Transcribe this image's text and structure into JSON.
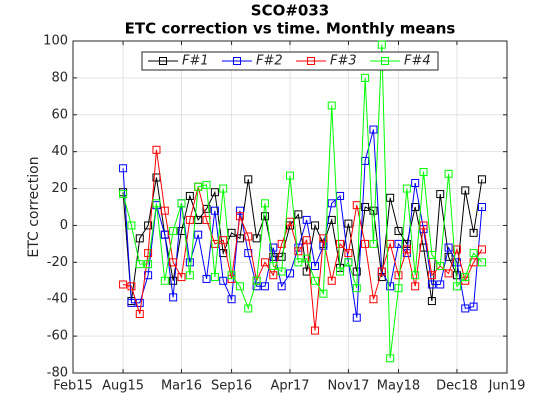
{
  "chart_data": {
    "type": "line",
    "title": "SCO#033",
    "subtitle": "ETC correction vs time. Monthly means",
    "ylabel": "ETC correction",
    "x": [
      6,
      7,
      8,
      9,
      10,
      11,
      12,
      13,
      14,
      15,
      16,
      17,
      18,
      19,
      20,
      21,
      22,
      23,
      24,
      25,
      26,
      27,
      28,
      29,
      30,
      31,
      32,
      33,
      34,
      35,
      36,
      37,
      38,
      39,
      40,
      41,
      42,
      43,
      44,
      45,
      46,
      47,
      48,
      49
    ],
    "xlim": [
      0,
      52
    ],
    "xticks": [
      {
        "value": 0,
        "label": "Feb15"
      },
      {
        "value": 6,
        "label": "Aug15"
      },
      {
        "value": 13,
        "label": "Mar16"
      },
      {
        "value": 19,
        "label": "Sep16"
      },
      {
        "value": 26,
        "label": "Apr17"
      },
      {
        "value": 33,
        "label": "Nov17"
      },
      {
        "value": 39,
        "label": "May18"
      },
      {
        "value": 46,
        "label": "Dec18"
      },
      {
        "value": 52,
        "label": "Jun19"
      }
    ],
    "ylim": [
      -80,
      100
    ],
    "yticks": [
      -80,
      -60,
      -40,
      -20,
      0,
      20,
      40,
      60,
      80,
      100
    ],
    "grid": true,
    "legend": "top",
    "series": [
      {
        "name": "F#1",
        "color": "#000000",
        "values": [
          18,
          -41,
          -7,
          0,
          26,
          -5,
          -30,
          -3,
          16,
          3,
          9,
          18,
          -15,
          -4,
          -7,
          25,
          -7,
          5,
          -17,
          -17,
          0,
          6,
          -25,
          0,
          -10,
          3,
          -23,
          1,
          -25,
          10,
          8,
          -28,
          15,
          -3,
          -10,
          10,
          -12,
          -41,
          17,
          -17,
          -27,
          19,
          -4,
          25
        ]
      },
      {
        "name": "F#2",
        "color": "#0000ff",
        "values": [
          31,
          -42,
          -42,
          -27,
          11,
          -5,
          -39,
          12,
          -20,
          -5,
          -29,
          8,
          -30,
          -40,
          8,
          -15,
          -33,
          -33,
          -12,
          -33,
          -26,
          -12,
          3,
          -22,
          -11,
          12,
          16,
          -20,
          -50,
          35,
          52,
          -25,
          -33,
          -10,
          -15,
          23,
          -2,
          -32,
          -32,
          -12,
          -20,
          -45,
          -44,
          10
        ]
      },
      {
        "name": "F#3",
        "color": "#ff0000",
        "values": [
          -32,
          -33,
          -48,
          -15,
          41,
          8,
          -20,
          -28,
          3,
          21,
          3,
          -10,
          -8,
          -29,
          5,
          -6,
          -30,
          -20,
          -27,
          -10,
          2,
          -14,
          -8,
          -57,
          -7,
          -30,
          -10,
          -15,
          11,
          -10,
          -40,
          -25,
          -10,
          -27,
          -13,
          -33,
          0,
          -27,
          -22,
          -26,
          -13,
          -30,
          -20,
          -13
        ]
      },
      {
        "name": "F#4",
        "color": "#00ff00",
        "values": [
          17,
          0,
          -21,
          -21,
          12,
          -30,
          -3,
          12,
          -27,
          21,
          22,
          -28,
          20,
          -27,
          -33,
          -45,
          -30,
          12,
          -22,
          -25,
          27,
          -20,
          -18,
          -30,
          -37,
          65,
          -25,
          -20,
          -34,
          80,
          -10,
          98,
          -72,
          -34,
          20,
          -27,
          29,
          -16,
          -22,
          28,
          -33,
          -28,
          -15,
          -20
        ]
      }
    ]
  }
}
